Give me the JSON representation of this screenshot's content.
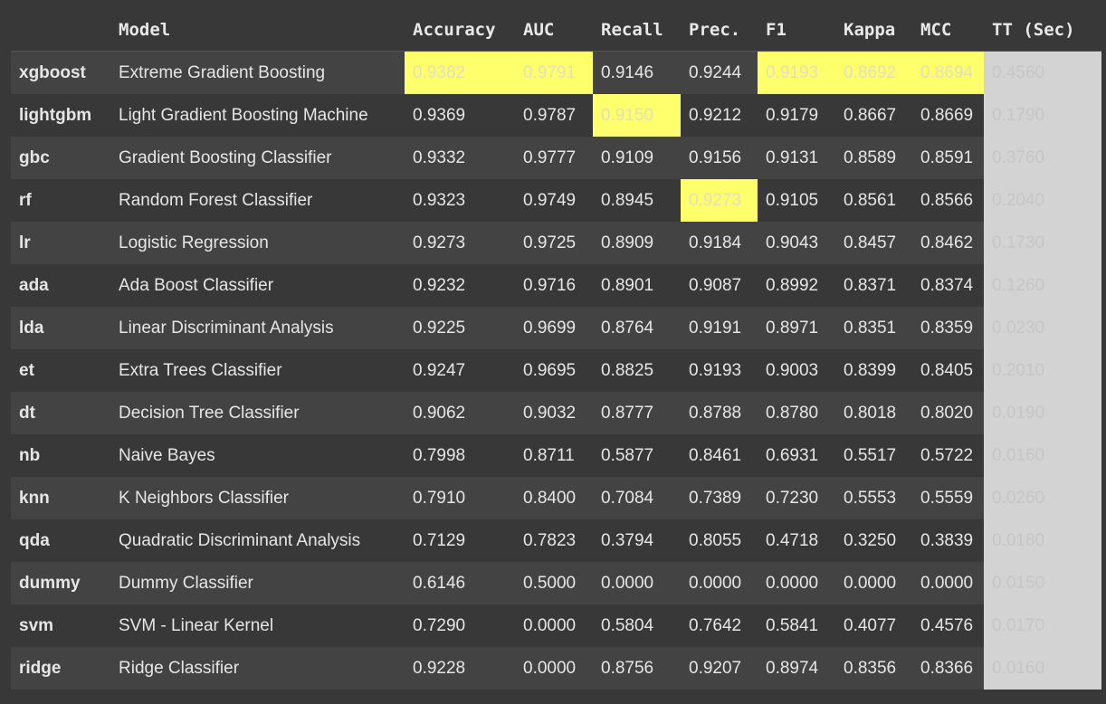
{
  "columns": [
    "",
    "Model",
    "Accuracy",
    "AUC",
    "Recall",
    "Prec.",
    "F1",
    "Kappa",
    "MCC",
    "TT (Sec)"
  ],
  "colors": {
    "background": "#383838",
    "row_alt": "#434343",
    "highlight": "#ffff6b",
    "tt_column": "#d3d3d3"
  },
  "rows": [
    {
      "id": "xgboost",
      "model": "Extreme Gradient Boosting",
      "accuracy": "0.9382",
      "auc": "0.9791",
      "recall": "0.9146",
      "prec": "0.9244",
      "f1": "0.9193",
      "kappa": "0.8692",
      "mcc": "0.8694",
      "tt": "0.4560",
      "highlight": [
        "accuracy",
        "auc",
        "f1",
        "kappa",
        "mcc"
      ]
    },
    {
      "id": "lightgbm",
      "model": "Light Gradient Boosting Machine",
      "accuracy": "0.9369",
      "auc": "0.9787",
      "recall": "0.9150",
      "prec": "0.9212",
      "f1": "0.9179",
      "kappa": "0.8667",
      "mcc": "0.8669",
      "tt": "0.1790",
      "highlight": [
        "recall"
      ]
    },
    {
      "id": "gbc",
      "model": "Gradient Boosting Classifier",
      "accuracy": "0.9332",
      "auc": "0.9777",
      "recall": "0.9109",
      "prec": "0.9156",
      "f1": "0.9131",
      "kappa": "0.8589",
      "mcc": "0.8591",
      "tt": "0.3760",
      "highlight": []
    },
    {
      "id": "rf",
      "model": "Random Forest Classifier",
      "accuracy": "0.9323",
      "auc": "0.9749",
      "recall": "0.8945",
      "prec": "0.9273",
      "f1": "0.9105",
      "kappa": "0.8561",
      "mcc": "0.8566",
      "tt": "0.2040",
      "highlight": [
        "prec"
      ]
    },
    {
      "id": "lr",
      "model": "Logistic Regression",
      "accuracy": "0.9273",
      "auc": "0.9725",
      "recall": "0.8909",
      "prec": "0.9184",
      "f1": "0.9043",
      "kappa": "0.8457",
      "mcc": "0.8462",
      "tt": "0.1730",
      "highlight": []
    },
    {
      "id": "ada",
      "model": "Ada Boost Classifier",
      "accuracy": "0.9232",
      "auc": "0.9716",
      "recall": "0.8901",
      "prec": "0.9087",
      "f1": "0.8992",
      "kappa": "0.8371",
      "mcc": "0.8374",
      "tt": "0.1260",
      "highlight": []
    },
    {
      "id": "lda",
      "model": "Linear Discriminant Analysis",
      "accuracy": "0.9225",
      "auc": "0.9699",
      "recall": "0.8764",
      "prec": "0.9191",
      "f1": "0.8971",
      "kappa": "0.8351",
      "mcc": "0.8359",
      "tt": "0.0230",
      "highlight": []
    },
    {
      "id": "et",
      "model": "Extra Trees Classifier",
      "accuracy": "0.9247",
      "auc": "0.9695",
      "recall": "0.8825",
      "prec": "0.9193",
      "f1": "0.9003",
      "kappa": "0.8399",
      "mcc": "0.8405",
      "tt": "0.2010",
      "highlight": []
    },
    {
      "id": "dt",
      "model": "Decision Tree Classifier",
      "accuracy": "0.9062",
      "auc": "0.9032",
      "recall": "0.8777",
      "prec": "0.8788",
      "f1": "0.8780",
      "kappa": "0.8018",
      "mcc": "0.8020",
      "tt": "0.0190",
      "highlight": []
    },
    {
      "id": "nb",
      "model": "Naive Bayes",
      "accuracy": "0.7998",
      "auc": "0.8711",
      "recall": "0.5877",
      "prec": "0.8461",
      "f1": "0.6931",
      "kappa": "0.5517",
      "mcc": "0.5722",
      "tt": "0.0160",
      "highlight": []
    },
    {
      "id": "knn",
      "model": "K Neighbors Classifier",
      "accuracy": "0.7910",
      "auc": "0.8400",
      "recall": "0.7084",
      "prec": "0.7389",
      "f1": "0.7230",
      "kappa": "0.5553",
      "mcc": "0.5559",
      "tt": "0.0260",
      "highlight": []
    },
    {
      "id": "qda",
      "model": "Quadratic Discriminant Analysis",
      "accuracy": "0.7129",
      "auc": "0.7823",
      "recall": "0.3794",
      "prec": "0.8055",
      "f1": "0.4718",
      "kappa": "0.3250",
      "mcc": "0.3839",
      "tt": "0.0180",
      "highlight": []
    },
    {
      "id": "dummy",
      "model": "Dummy Classifier",
      "accuracy": "0.6146",
      "auc": "0.5000",
      "recall": "0.0000",
      "prec": "0.0000",
      "f1": "0.0000",
      "kappa": "0.0000",
      "mcc": "0.0000",
      "tt": "0.0150",
      "highlight": []
    },
    {
      "id": "svm",
      "model": "SVM - Linear Kernel",
      "accuracy": "0.7290",
      "auc": "0.0000",
      "recall": "0.5804",
      "prec": "0.7642",
      "f1": "0.5841",
      "kappa": "0.4077",
      "mcc": "0.4576",
      "tt": "0.0170",
      "highlight": []
    },
    {
      "id": "ridge",
      "model": "Ridge Classifier",
      "accuracy": "0.9228",
      "auc": "0.0000",
      "recall": "0.8756",
      "prec": "0.9207",
      "f1": "0.8974",
      "kappa": "0.8356",
      "mcc": "0.8366",
      "tt": "0.0160",
      "highlight": []
    }
  ]
}
